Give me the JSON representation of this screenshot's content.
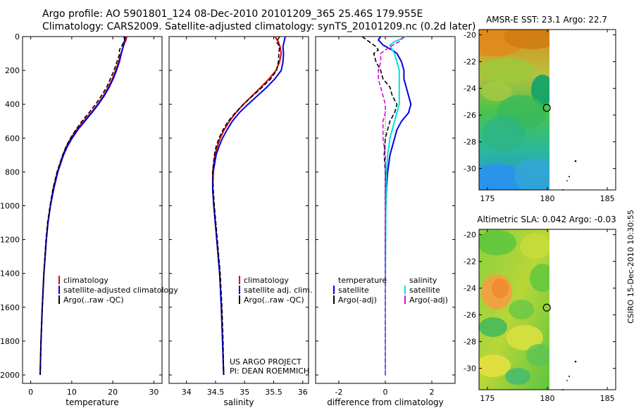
{
  "header": {
    "line1": "Argo profile: AO 5901801_124 08-Dec-2010 20101209_365 25.46S 179.955E",
    "line2": "Climatology: CARS2009. Satellite-adjusted climatology: synTS_20101209.nc (0.2d later)"
  },
  "side_text": "CSIRO 15-Dec-2010 10:30:55",
  "colors": {
    "climatology": "#e00000",
    "satellite": "#0000e0",
    "argo": "#000000",
    "sat_salinity": "#00e0e0",
    "argo_salinity": "#e000e0"
  },
  "chart_data": [
    {
      "type": "line",
      "id": "temperature",
      "xlabel": "temperature",
      "ylabel": "",
      "xlim": [
        -2,
        32
      ],
      "ylim": [
        2050,
        0
      ],
      "xticks": [
        0,
        10,
        20,
        30
      ],
      "yticks": [
        0,
        200,
        400,
        600,
        800,
        1000,
        1200,
        1400,
        1600,
        1800,
        2000
      ],
      "legend": {
        "placement": "lower-left",
        "entries": [
          "climatology",
          "satellite-adjusted climatology",
          "Argo(..raw -QC)"
        ]
      },
      "series": [
        {
          "name": "climatology",
          "color": "#e00000",
          "style": "solid",
          "depth": [
            0,
            20,
            50,
            100,
            150,
            200,
            250,
            300,
            350,
            400,
            450,
            500,
            550,
            600,
            650,
            700,
            800,
            900,
            1000,
            1100,
            1200,
            1400,
            1600,
            1800,
            2000
          ],
          "values": [
            23.4,
            23.2,
            22.7,
            22.0,
            21.4,
            20.7,
            19.9,
            18.9,
            17.7,
            16.3,
            14.7,
            12.9,
            11.2,
            9.8,
            8.7,
            7.8,
            6.5,
            5.5,
            4.8,
            4.2,
            3.8,
            3.2,
            2.8,
            2.5,
            2.3
          ]
        },
        {
          "name": "satellite-adjusted climatology",
          "color": "#0000e0",
          "style": "solid",
          "depth": [
            0,
            20,
            50,
            100,
            150,
            200,
            250,
            300,
            350,
            400,
            450,
            500,
            550,
            600,
            650,
            700,
            800,
            900,
            1000,
            1100,
            1200,
            1400,
            1600,
            1800,
            2000
          ],
          "values": [
            23.1,
            22.9,
            22.6,
            22.1,
            21.6,
            20.9,
            20.1,
            19.1,
            17.9,
            16.5,
            14.9,
            13.2,
            11.5,
            10.1,
            8.9,
            8.0,
            6.6,
            5.6,
            4.8,
            4.2,
            3.8,
            3.2,
            2.8,
            2.5,
            2.3
          ]
        },
        {
          "name": "Argo(..raw -QC)",
          "color": "#000000",
          "style": "dashed",
          "depth": [
            0,
            20,
            50,
            80,
            100,
            150,
            200,
            250,
            300,
            350,
            400,
            450,
            500,
            550,
            600,
            650,
            700,
            800,
            900,
            1000,
            1100,
            1200,
            1400,
            1600,
            1800,
            2000
          ],
          "values": [
            22.7,
            22.9,
            22.3,
            21.6,
            21.7,
            21.0,
            20.3,
            19.4,
            18.5,
            17.2,
            15.8,
            14.2,
            12.5,
            11.0,
            9.7,
            8.6,
            7.8,
            6.4,
            5.4,
            4.7,
            4.1,
            3.7,
            3.2,
            2.8,
            2.5,
            2.3
          ]
        }
      ]
    },
    {
      "type": "line",
      "id": "salinity",
      "xlabel": "salinity",
      "ylabel": "",
      "xlim": [
        33.7,
        36.1
      ],
      "ylim": [
        2050,
        0
      ],
      "xticks": [
        34,
        34.5,
        35,
        35.5,
        36
      ],
      "legend": {
        "placement": "lower-left",
        "entries": [
          "climatology",
          "satellite adj. clim.",
          "Argo(..raw -QC)"
        ]
      },
      "annotations": [
        "US ARGO PROJECT",
        "PI: DEAN ROEMMICH"
      ],
      "series": [
        {
          "name": "climatology",
          "color": "#e00000",
          "style": "solid",
          "depth": [
            0,
            30,
            60,
            100,
            150,
            200,
            250,
            300,
            350,
            400,
            450,
            500,
            550,
            600,
            650,
            700,
            800,
            900,
            1000,
            1200,
            1400,
            1600,
            1800,
            2000
          ],
          "values": [
            35.52,
            35.58,
            35.61,
            35.63,
            35.6,
            35.54,
            35.42,
            35.28,
            35.13,
            34.98,
            34.85,
            34.74,
            34.65,
            34.58,
            34.53,
            34.49,
            34.45,
            34.45,
            34.47,
            34.52,
            34.57,
            34.6,
            34.62,
            34.64
          ]
        },
        {
          "name": "satellite adj. clim.",
          "color": "#0000e0",
          "style": "solid",
          "depth": [
            0,
            30,
            60,
            100,
            150,
            200,
            250,
            300,
            350,
            400,
            450,
            500,
            550,
            600,
            650,
            700,
            800,
            900,
            1000,
            1200,
            1400,
            1600,
            1800,
            2000
          ],
          "values": [
            35.7,
            35.68,
            35.66,
            35.67,
            35.66,
            35.63,
            35.52,
            35.38,
            35.22,
            35.06,
            34.91,
            34.79,
            34.7,
            34.62,
            34.56,
            34.51,
            34.46,
            34.45,
            34.47,
            34.52,
            34.57,
            34.6,
            34.62,
            34.64
          ]
        },
        {
          "name": "Argo(..raw -QC)",
          "color": "#000000",
          "style": "dashed",
          "depth": [
            0,
            30,
            60,
            100,
            150,
            200,
            250,
            300,
            350,
            400,
            450,
            500,
            550,
            600,
            650,
            700,
            800,
            900,
            1000,
            1200,
            1400,
            1600,
            1800,
            2000
          ],
          "values": [
            35.6,
            35.55,
            35.6,
            35.59,
            35.58,
            35.55,
            35.45,
            35.3,
            35.14,
            34.98,
            34.84,
            34.72,
            34.63,
            34.56,
            34.51,
            34.48,
            34.45,
            34.46,
            34.48,
            34.53,
            34.58,
            34.61,
            34.63,
            34.64
          ]
        }
      ]
    },
    {
      "type": "line",
      "id": "difference",
      "xlabel": "difference from climatology",
      "ylabel": "",
      "xlim": [
        -3,
        3
      ],
      "ylim": [
        2050,
        0
      ],
      "xticks": [
        -2,
        0,
        2
      ],
      "legend": {
        "placement": "lower-left",
        "groups": [
          {
            "title": "temperature",
            "entries": [
              "satellite",
              "Argo(-adj)"
            ]
          },
          {
            "title": "salinity",
            "entries": [
              "satellite",
              "Argo(-adj)"
            ]
          }
        ]
      },
      "series": [
        {
          "name": "temperature satellite",
          "color": "#0000e0",
          "style": "solid",
          "depth": [
            0,
            20,
            50,
            80,
            100,
            150,
            200,
            250,
            300,
            350,
            400,
            450,
            500,
            550,
            600,
            650,
            700,
            800,
            900,
            1000,
            1200,
            1600,
            2000
          ],
          "values": [
            -0.2,
            -0.3,
            -0.1,
            0.3,
            0.5,
            0.7,
            0.8,
            0.8,
            0.9,
            1.0,
            1.1,
            1.0,
            0.7,
            0.5,
            0.4,
            0.3,
            0.2,
            0.1,
            0.05,
            0.02,
            0.0,
            0.0,
            0.0
          ]
        },
        {
          "name": "temperature Argo(-adj)",
          "color": "#000000",
          "style": "dashed",
          "depth": [
            0,
            20,
            40,
            60,
            80,
            100,
            150,
            200,
            250,
            300,
            350,
            400,
            450,
            500,
            550,
            600,
            700,
            800,
            1000,
            2000
          ],
          "values": [
            -1.0,
            -0.8,
            -0.6,
            -0.4,
            -0.3,
            -0.5,
            -0.4,
            -0.2,
            -0.1,
            0.2,
            0.3,
            0.5,
            0.4,
            0.2,
            0.1,
            0.0,
            -0.05,
            0.0,
            0.0,
            0.0
          ]
        },
        {
          "name": "salinity satellite",
          "color": "#00e0e0",
          "style": "solid",
          "depth": [
            0,
            30,
            50,
            80,
            100,
            150,
            200,
            250,
            300,
            350,
            400,
            450,
            500,
            550,
            600,
            700,
            800,
            1000,
            1500,
            2000
          ],
          "values": [
            0.9,
            0.4,
            0.2,
            0.3,
            0.4,
            0.5,
            0.6,
            0.6,
            0.6,
            0.6,
            0.6,
            0.5,
            0.4,
            0.3,
            0.2,
            0.1,
            0.05,
            0.02,
            0.0,
            0.0
          ]
        },
        {
          "name": "salinity Argo(-adj)",
          "color": "#e000e0",
          "style": "dashed",
          "depth": [
            0,
            30,
            60,
            100,
            150,
            200,
            250,
            300,
            350,
            400,
            450,
            500,
            550,
            600,
            700,
            800,
            900,
            1000,
            1200,
            1400,
            1600,
            2000
          ],
          "values": [
            0.8,
            0.6,
            0.2,
            -0.2,
            -0.2,
            -0.3,
            -0.3,
            -0.2,
            -0.1,
            0.0,
            0.0,
            -0.1,
            -0.1,
            -0.1,
            0.0,
            0.0,
            0.0,
            0.0,
            0.0,
            0.0,
            0.0,
            0.0
          ]
        }
      ]
    },
    {
      "type": "heatmap",
      "id": "sst_map",
      "title": "AMSR-E SST: 23.1 Argo: 22.7",
      "xlim": [
        174.3,
        185.7
      ],
      "ylim": [
        -31.6,
        -19.6
      ],
      "xticks": [
        175,
        180,
        185
      ],
      "yticks": [
        -20,
        -22,
        -24,
        -26,
        -28,
        -30
      ],
      "data_extent_lon": [
        174.3,
        180.1
      ],
      "profile_marker": {
        "lon": 179.955,
        "lat": -25.46
      }
    },
    {
      "type": "heatmap",
      "id": "sla_map",
      "title": "Altimetric SLA: 0.042 Argo: -0.03",
      "xlim": [
        174.3,
        185.7
      ],
      "ylim": [
        -31.6,
        -19.6
      ],
      "xticks": [
        175,
        180,
        185
      ],
      "yticks": [
        -20,
        -22,
        -24,
        -26,
        -28,
        -30
      ],
      "data_extent_lon": [
        174.3,
        180.1
      ],
      "profile_marker": {
        "lon": 179.955,
        "lat": -25.46
      }
    }
  ]
}
